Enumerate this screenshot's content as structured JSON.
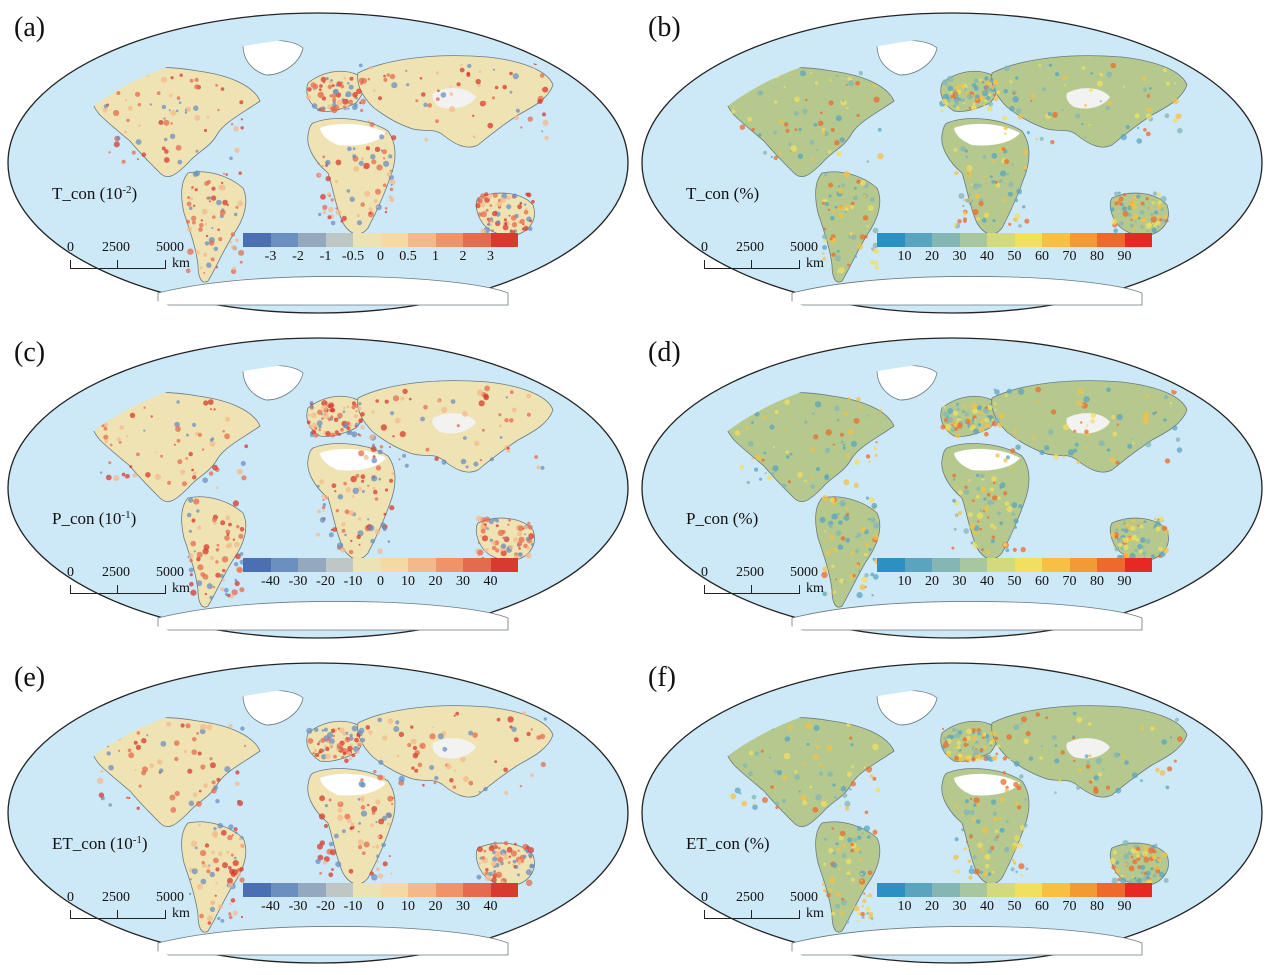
{
  "palettes": {
    "diverging": [
      "#4a6fb2",
      "#6b8fbf",
      "#94a9bd",
      "#bfc6c6",
      "#ece3b5",
      "#f5d9a2",
      "#f4b98a",
      "#ef9468",
      "#e56b4f",
      "#d73a2e"
    ],
    "percent": [
      "#2c90c2",
      "#5ba4c0",
      "#84b6b4",
      "#a8c79e",
      "#d3da7e",
      "#f1df5e",
      "#f7c042",
      "#f39a35",
      "#ee6a2c",
      "#e42a22"
    ]
  },
  "panels": [
    {
      "letter": "(a)",
      "var": "T_con",
      "unit_prefix": " (10",
      "exp": "-2",
      "unit_suffix": ")",
      "palette": "diverging",
      "ticks": [
        "-3",
        "-2",
        "-1",
        "-0.5",
        "0",
        "0.5",
        "1",
        "2",
        "3"
      ]
    },
    {
      "letter": "(b)",
      "var": "T_con",
      "unit_prefix": " (%)",
      "exp": "",
      "unit_suffix": "",
      "palette": "percent",
      "ticks": [
        "10",
        "20",
        "30",
        "40",
        "50",
        "60",
        "70",
        "80",
        "90"
      ]
    },
    {
      "letter": "(c)",
      "var": "P_con",
      "unit_prefix": " (10",
      "exp": "-1",
      "unit_suffix": ")",
      "palette": "diverging",
      "ticks": [
        "-40",
        "-30",
        "-20",
        "-10",
        "0",
        "10",
        "20",
        "30",
        "40"
      ]
    },
    {
      "letter": "(d)",
      "var": "P_con",
      "unit_prefix": " (%)",
      "exp": "",
      "unit_suffix": "",
      "palette": "percent",
      "ticks": [
        "10",
        "20",
        "30",
        "40",
        "50",
        "60",
        "70",
        "80",
        "90"
      ]
    },
    {
      "letter": "(e)",
      "var": "ET_con",
      "unit_prefix": " (10",
      "exp": "-1",
      "unit_suffix": ")",
      "palette": "diverging",
      "ticks": [
        "-40",
        "-30",
        "-20",
        "-10",
        "0",
        "10",
        "20",
        "30",
        "40"
      ]
    },
    {
      "letter": "(f)",
      "var": "ET_con",
      "unit_prefix": " (%)",
      "exp": "",
      "unit_suffix": "",
      "palette": "percent",
      "ticks": [
        "10",
        "20",
        "30",
        "40",
        "50",
        "60",
        "70",
        "80",
        "90"
      ]
    }
  ],
  "scalebar": {
    "labels": [
      "0",
      "2500",
      "5000"
    ],
    "unit": "km"
  }
}
